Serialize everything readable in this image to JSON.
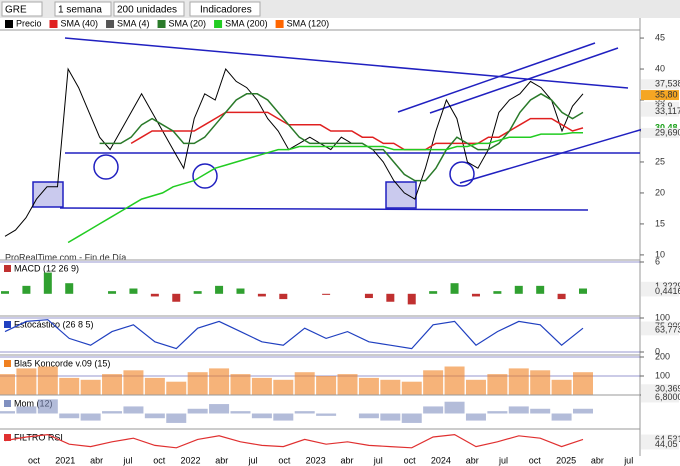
{
  "toolbar": {
    "symbol": "GRE",
    "period": "1 semana",
    "units": "200 unidades",
    "indicators": "Indicadores"
  },
  "legend": [
    {
      "name": "Precio",
      "color": "#000000"
    },
    {
      "name": "SMA (40)",
      "color": "#e02020"
    },
    {
      "name": "SMA (4)",
      "color": "#555555"
    },
    {
      "name": "SMA (20)",
      "color": "#2a7a2a"
    },
    {
      "name": "SMA (200)",
      "color": "#22cc22"
    },
    {
      "name": "SMA (120)",
      "color": "#ff6600"
    }
  ],
  "watermark": "ProRealTime.com - Fin de Día",
  "chart_data": [
    {
      "type": "line",
      "ylim": [
        9.5,
        46.3
      ],
      "yticks": [
        10,
        15,
        20,
        25,
        30,
        35,
        40,
        45
      ],
      "price_labels": [
        {
          "value": 37.538,
          "label": "37,538"
        },
        {
          "value": 35.8,
          "label": "35,80"
        },
        {
          "value": 33.9,
          "label": "33,9"
        },
        {
          "value": 33.117,
          "label": "33,117"
        },
        {
          "value": 30.48,
          "label": "30,48"
        },
        {
          "value": 29.69,
          "label": "29,690"
        }
      ],
      "x_labels": [
        "oct",
        "2021",
        "abr",
        "jul",
        "oct",
        "2022",
        "abr",
        "jul",
        "oct",
        "2023",
        "abr",
        "jul",
        "oct",
        "2024",
        "abr",
        "jul",
        "oct",
        "2025",
        "abr",
        "jul"
      ],
      "series": [
        {
          "name": "Precio",
          "color": "#000000",
          "values": [
            13,
            14,
            16,
            19,
            21,
            21,
            40,
            37,
            33,
            29,
            27,
            30,
            33,
            36,
            33,
            30,
            27,
            24,
            32,
            36,
            35,
            40,
            38,
            37,
            35,
            32,
            30,
            27,
            28,
            29,
            28,
            27,
            29,
            28,
            28,
            27,
            25,
            22,
            20,
            19,
            24,
            30,
            35,
            32,
            25,
            24,
            27,
            33,
            35,
            36,
            38,
            37,
            35,
            30,
            34,
            36
          ]
        },
        {
          "name": "SMA (40)",
          "color": "#e02020",
          "values": [
            null,
            null,
            null,
            null,
            null,
            null,
            null,
            null,
            null,
            null,
            null,
            null,
            28,
            29,
            30,
            30,
            30,
            30,
            30,
            31,
            32,
            33,
            33,
            33,
            33,
            33,
            32,
            31,
            31,
            31,
            31,
            30,
            30,
            30,
            29,
            29,
            28,
            28,
            27,
            27,
            27,
            28,
            28,
            28,
            28,
            28,
            29,
            29,
            30,
            31,
            32,
            32,
            32,
            31,
            30,
            30.5
          ]
        },
        {
          "name": "SMA (20)",
          "color": "#2a7a2a",
          "values": [
            null,
            null,
            null,
            null,
            null,
            null,
            null,
            null,
            null,
            28,
            28,
            28,
            29,
            31,
            32,
            31,
            30,
            28,
            28,
            29,
            31,
            33,
            35,
            36,
            36,
            35,
            33,
            31,
            29,
            28,
            28,
            28,
            28,
            28,
            28,
            27,
            27,
            25,
            23,
            22,
            22,
            24,
            27,
            29,
            28,
            27,
            27,
            28,
            30,
            33,
            35,
            36,
            35,
            33,
            32,
            33
          ]
        },
        {
          "name": "SMA (200)",
          "color": "#22cc22",
          "values": [
            null,
            null,
            null,
            null,
            null,
            null,
            12,
            13,
            14,
            15,
            16,
            17,
            18,
            19,
            19.5,
            20,
            21,
            21.5,
            22,
            23,
            24,
            24.5,
            25,
            25.5,
            26,
            26.5,
            27,
            27,
            27.5,
            27.5,
            27.5,
            27.5,
            27.5,
            27.5,
            27.5,
            27.5,
            27.5,
            27,
            27,
            27,
            27,
            27,
            27,
            27.5,
            27.5,
            28,
            28,
            28.5,
            29,
            29,
            29,
            29.5,
            29.5,
            29.5,
            29.7,
            29.7
          ]
        }
      ]
    },
    {
      "type": "bar",
      "title": "MACD (12 26 9)",
      "color": "#c03030",
      "ylim": [
        -4,
        6
      ],
      "yticks": [
        6
      ],
      "price_labels": [
        {
          "value": 1.3229,
          "label": "1,3229"
        },
        {
          "value": 0.4416,
          "label": "0,4416"
        }
      ],
      "values": [
        0.5,
        1.5,
        4,
        2,
        0,
        0.5,
        1,
        -0.5,
        -1.5,
        0.5,
        1.5,
        1,
        -0.5,
        -1,
        0,
        -0.2,
        0,
        -0.8,
        -1.5,
        -2,
        0.5,
        2,
        -0.5,
        0.5,
        1.5,
        1.5,
        -1,
        1
      ]
    },
    {
      "type": "line",
      "title": "Estocástico (26 8 5)",
      "color": "#2040c0",
      "ylim": [
        0,
        100
      ],
      "yticks": [
        0,
        100
      ],
      "price_labels": [
        {
          "value": 75,
          "label": "75,000"
        },
        {
          "value": 63.773,
          "label": "63,773"
        }
      ],
      "values": [
        60,
        90,
        95,
        40,
        20,
        60,
        80,
        30,
        10,
        70,
        90,
        60,
        30,
        20,
        70,
        40,
        60,
        30,
        20,
        10,
        80,
        90,
        20,
        60,
        90,
        80,
        20,
        70
      ]
    },
    {
      "type": "area",
      "title": "Bla5 Koncorde v.09 (15)",
      "color": "#f08020",
      "ylim": [
        0,
        200
      ],
      "yticks": [
        0,
        100,
        200
      ],
      "price_labels": [
        {
          "value": 30.369,
          "label": "30,369"
        }
      ],
      "values": [
        110,
        140,
        150,
        90,
        80,
        110,
        130,
        90,
        70,
        120,
        140,
        110,
        90,
        80,
        120,
        100,
        110,
        90,
        80,
        70,
        130,
        150,
        80,
        110,
        140,
        130,
        80,
        120
      ]
    },
    {
      "type": "area",
      "title": "Mom (12)",
      "color": "#8090c0",
      "ylim": [
        -7,
        7
      ],
      "yticks": [],
      "price_labels": [
        {
          "value": 6.8,
          "label": "6,8000"
        }
      ],
      "values": [
        1,
        3,
        6,
        -2,
        -3,
        1,
        3,
        -2,
        -4,
        2,
        4,
        1,
        -2,
        -3,
        1,
        -1,
        0,
        -2,
        -3,
        -4,
        3,
        5,
        -3,
        1,
        3,
        2,
        -3,
        2
      ]
    },
    {
      "type": "line",
      "title": "FILTRO RSI",
      "color": "#e03030",
      "ylim": [
        0,
        100
      ],
      "yticks": [],
      "price_labels": [
        {
          "value": 64.531,
          "label": "64,531"
        },
        {
          "value": 44.05,
          "label": "44,05"
        }
      ],
      "values": [
        60,
        75,
        85,
        45,
        35,
        55,
        70,
        40,
        30,
        65,
        80,
        55,
        40,
        35,
        65,
        45,
        55,
        40,
        35,
        30,
        75,
        85,
        35,
        55,
        80,
        70,
        35,
        65
      ]
    }
  ]
}
